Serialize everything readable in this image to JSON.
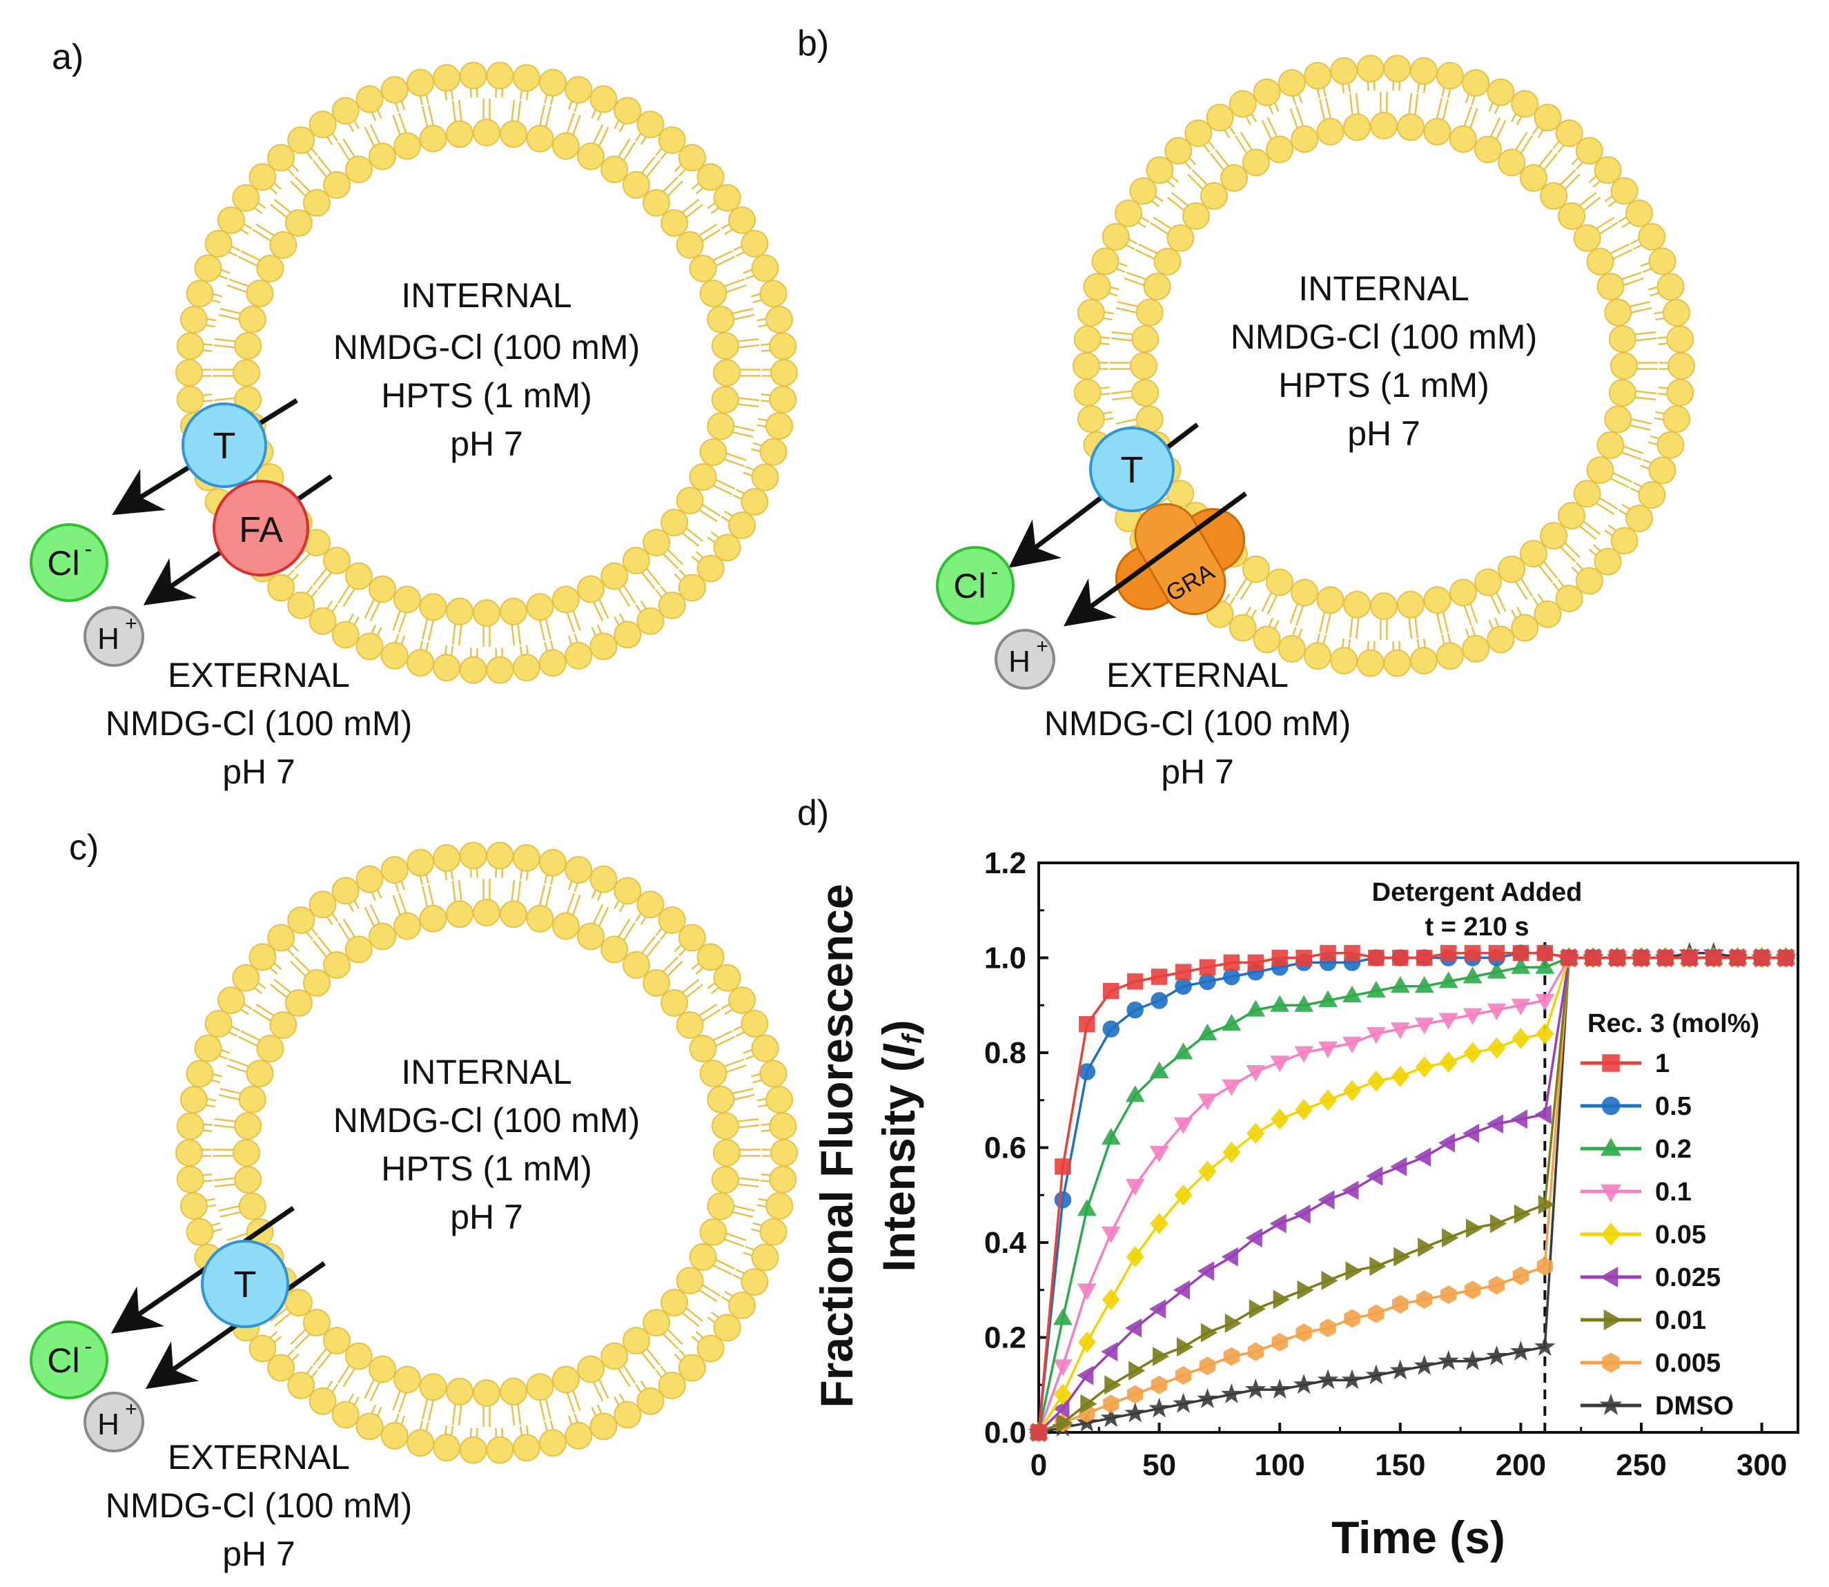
{
  "panel_a": {
    "label": "a)",
    "internal": [
      "INTERNAL",
      "NMDG-Cl (100 mM)",
      "HPTS (1 mM)",
      "pH 7"
    ],
    "external": [
      "EXTERNAL",
      "NMDG-Cl (100 mM)",
      "pH 7"
    ],
    "carrier": "T",
    "fatty_acid": "FA",
    "ion_cl": "Cl",
    "ion_cl_charge": "-",
    "ion_h": "H",
    "ion_h_charge": "+"
  },
  "panel_b": {
    "label": "b)",
    "internal": [
      "INTERNAL",
      "NMDG-Cl (100 mM)",
      "HPTS (1 mM)",
      "pH 7"
    ],
    "external": [
      "EXTERNAL",
      "NMDG-Cl (100 mM)",
      "pH 7"
    ],
    "carrier": "T",
    "channel": "GRA",
    "ion_cl": "Cl",
    "ion_cl_charge": "-",
    "ion_h": "H",
    "ion_h_charge": "+"
  },
  "panel_c": {
    "label": "c)",
    "internal": [
      "INTERNAL",
      "NMDG-Cl (100 mM)",
      "HPTS (1 mM)",
      "pH 7"
    ],
    "external": [
      "EXTERNAL",
      "NMDG-Cl (100 mM)",
      "pH 7"
    ],
    "carrier": "T",
    "ion_cl": "Cl",
    "ion_cl_charge": "-",
    "ion_h": "H",
    "ion_h_charge": "+"
  },
  "panel_d": {
    "label": "d)"
  },
  "colors": {
    "lipid": "#f7dd6a",
    "lipid_edge": "#e6c24a",
    "carrier": "#8fdcf8",
    "fatty_acid": "#f58a8a",
    "chloride": "#7ef07e",
    "proton": "#d6d6d6",
    "channel": "#f08a1e"
  },
  "chart_data": {
    "type": "line",
    "xlabel": "Time (s)",
    "ylabel_line1": "Fractional Fluorescence",
    "ylabel_line2": "Intensity (",
    "ylabel_symbol": "I",
    "ylabel_sub": "f",
    "ylabel_close": ")",
    "xlim": [
      0,
      315
    ],
    "ylim": [
      0,
      1.2
    ],
    "xticks": [
      0,
      50,
      100,
      150,
      200,
      250,
      300
    ],
    "xtick_labels": [
      "0",
      "50",
      "100",
      "150",
      "200",
      "250",
      "300"
    ],
    "yticks": [
      0,
      0.2,
      0.4,
      0.6,
      0.8,
      1.0,
      1.2
    ],
    "ytick_labels": [
      "0.0",
      "0.2",
      "0.4",
      "0.6",
      "0.8",
      "1.0",
      "1.2"
    ],
    "annotation_line1": "Detergent Added",
    "annotation_line2": "t = 210 s",
    "detergent_time": 210,
    "legend_title": "Rec. 3 (mol%)",
    "x": [
      0,
      10,
      20,
      30,
      40,
      50,
      60,
      70,
      80,
      90,
      100,
      110,
      120,
      130,
      140,
      150,
      160,
      170,
      180,
      190,
      200,
      210,
      220,
      230,
      240,
      250,
      260,
      270,
      280,
      290,
      300,
      310
    ],
    "series": [
      {
        "name": "1",
        "color": "#e8413c",
        "marker": "square",
        "values": [
          0,
          0.56,
          0.86,
          0.93,
          0.95,
          0.96,
          0.97,
          0.98,
          0.99,
          0.99,
          1.0,
          1.0,
          1.01,
          1.01,
          1.0,
          1.0,
          1.0,
          1.01,
          1.01,
          1.01,
          1.01,
          1.01,
          1.0,
          1.0,
          1.0,
          1.0,
          1.0,
          1.0,
          1.0,
          1.0,
          1.0,
          1.0
        ]
      },
      {
        "name": "0.5",
        "color": "#1f6fc5",
        "marker": "circle",
        "values": [
          0,
          0.49,
          0.76,
          0.85,
          0.89,
          0.91,
          0.94,
          0.95,
          0.96,
          0.97,
          0.98,
          0.99,
          0.99,
          0.99,
          1.0,
          1.0,
          1.0,
          1.0,
          1.0,
          1.0,
          1.01,
          1.01,
          1.0,
          1.0,
          1.0,
          1.0,
          1.0,
          1.0,
          1.0,
          1.0,
          1.0,
          1.0
        ]
      },
      {
        "name": "0.2",
        "color": "#2daa4a",
        "marker": "triangle-up",
        "values": [
          0,
          0.24,
          0.47,
          0.62,
          0.71,
          0.76,
          0.8,
          0.84,
          0.86,
          0.89,
          0.9,
          0.9,
          0.91,
          0.92,
          0.93,
          0.94,
          0.94,
          0.95,
          0.96,
          0.97,
          0.98,
          0.98,
          1.0,
          1.0,
          1.0,
          1.0,
          1.0,
          1.0,
          1.0,
          1.0,
          1.0,
          1.0
        ]
      },
      {
        "name": "0.1",
        "color": "#f57fc2",
        "marker": "triangle-down",
        "values": [
          0,
          0.14,
          0.3,
          0.42,
          0.52,
          0.59,
          0.65,
          0.7,
          0.73,
          0.76,
          0.78,
          0.8,
          0.81,
          0.82,
          0.84,
          0.85,
          0.86,
          0.87,
          0.88,
          0.89,
          0.9,
          0.91,
          1.0,
          1.0,
          1.0,
          1.0,
          1.0,
          1.0,
          1.0,
          1.0,
          1.0,
          1.0
        ]
      },
      {
        "name": "0.05",
        "color": "#f2d400",
        "marker": "diamond",
        "values": [
          0,
          0.08,
          0.19,
          0.28,
          0.37,
          0.44,
          0.5,
          0.55,
          0.59,
          0.63,
          0.66,
          0.68,
          0.7,
          0.72,
          0.74,
          0.75,
          0.77,
          0.78,
          0.8,
          0.81,
          0.83,
          0.84,
          1.0,
          1.0,
          1.0,
          1.0,
          1.0,
          1.0,
          1.0,
          1.0,
          1.0,
          1.0
        ]
      },
      {
        "name": "0.025",
        "color": "#9a3fb5",
        "marker": "triangle-left",
        "values": [
          0,
          0.05,
          0.12,
          0.17,
          0.22,
          0.26,
          0.3,
          0.34,
          0.37,
          0.41,
          0.44,
          0.46,
          0.49,
          0.51,
          0.54,
          0.56,
          0.58,
          0.61,
          0.63,
          0.65,
          0.66,
          0.67,
          1.0,
          1.0,
          1.0,
          1.0,
          1.0,
          1.0,
          1.0,
          1.0,
          1.0,
          1.0
        ]
      },
      {
        "name": "0.01",
        "color": "#7b7d1a",
        "marker": "triangle-right",
        "values": [
          0,
          0.02,
          0.06,
          0.1,
          0.13,
          0.16,
          0.18,
          0.21,
          0.23,
          0.26,
          0.28,
          0.3,
          0.32,
          0.34,
          0.35,
          0.37,
          0.39,
          0.41,
          0.43,
          0.44,
          0.46,
          0.48,
          1.0,
          1.0,
          1.0,
          1.0,
          1.0,
          1.0,
          1.0,
          1.0,
          1.0,
          1.0
        ]
      },
      {
        "name": "0.005",
        "color": "#f3a24a",
        "marker": "hexagon",
        "values": [
          0,
          0.02,
          0.04,
          0.06,
          0.08,
          0.1,
          0.12,
          0.14,
          0.16,
          0.17,
          0.19,
          0.21,
          0.22,
          0.24,
          0.25,
          0.27,
          0.28,
          0.29,
          0.3,
          0.31,
          0.33,
          0.35,
          1.0,
          1.0,
          1.0,
          1.0,
          1.0,
          1.0,
          1.0,
          1.0,
          1.0,
          1.0
        ]
      },
      {
        "name": "DMSO",
        "color": "#3a3a3a",
        "marker": "star",
        "values": [
          0,
          0.01,
          0.02,
          0.03,
          0.04,
          0.05,
          0.06,
          0.07,
          0.08,
          0.09,
          0.09,
          0.1,
          0.11,
          0.11,
          0.12,
          0.13,
          0.14,
          0.15,
          0.15,
          0.16,
          0.17,
          0.18,
          1.0,
          1.0,
          1.0,
          1.0,
          1.0,
          1.01,
          1.01,
          1.0,
          1.0,
          1.0
        ]
      }
    ]
  }
}
